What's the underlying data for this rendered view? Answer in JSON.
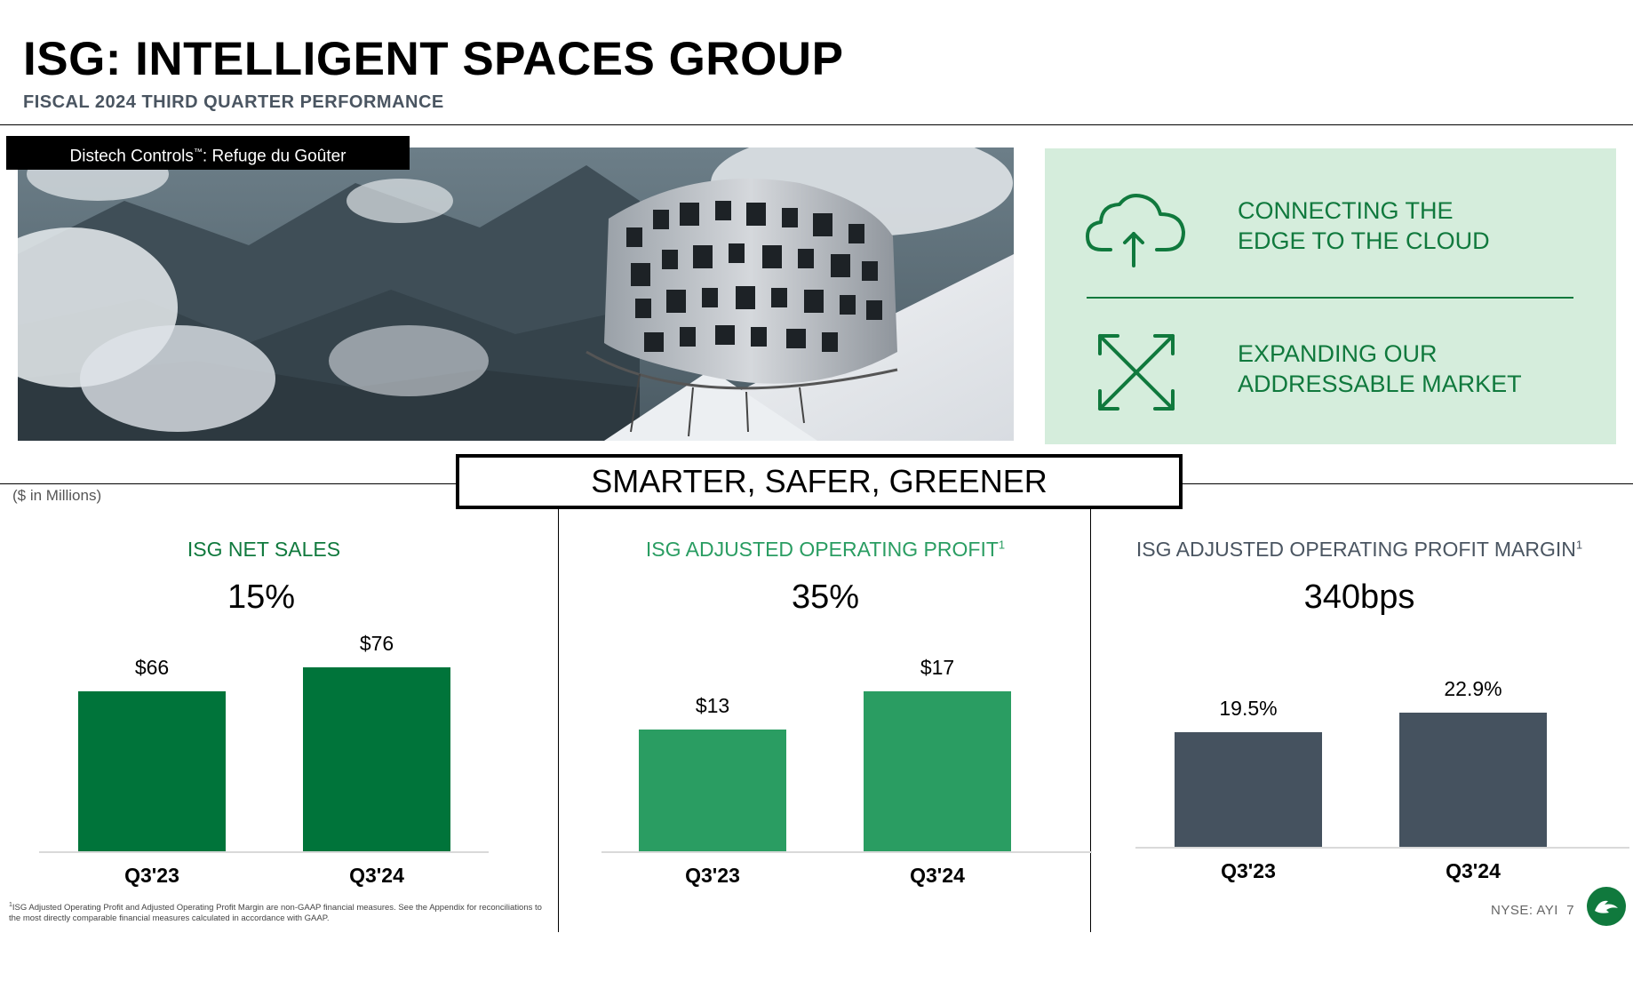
{
  "header": {
    "title": "ISG: INTELLIGENT SPACES GROUP",
    "subtitle": "FISCAL 2024 THIRD QUARTER PERFORMANCE"
  },
  "photo": {
    "caption_main": "Distech Controls",
    "caption_tm": "™",
    "caption_rest": ": Refuge du Goûter"
  },
  "panel": {
    "items": [
      {
        "line1": "CONNECTING THE",
        "line2": "EDGE TO THE CLOUD",
        "icon": "cloud-upload-icon"
      },
      {
        "line1": "EXPANDING OUR",
        "line2": "ADDRESSABLE MARKET",
        "icon": "expand-arrows-icon"
      }
    ],
    "color": "#10793d",
    "background": "#d5eddc"
  },
  "tagline": "SMARTER, SAFER, GREENER",
  "units_note": "($ in Millions)",
  "chart_data": [
    {
      "type": "bar",
      "title": "ISG NET SALES",
      "title_sup": "",
      "growth": "15%",
      "categories": [
        "Q3'23",
        "Q3'24"
      ],
      "values": [
        66,
        76
      ],
      "value_labels": [
        "$66",
        "$76"
      ],
      "color": "#00743a",
      "title_color": "#10793d"
    },
    {
      "type": "bar",
      "title": "ISG ADJUSTED OPERATING PROFIT",
      "title_sup": "1",
      "growth": "35%",
      "categories": [
        "Q3'23",
        "Q3'24"
      ],
      "values": [
        13,
        17
      ],
      "value_labels": [
        "$13",
        "$17"
      ],
      "color": "#2a9d62",
      "title_color": "#2a9d62"
    },
    {
      "type": "bar",
      "title": "ISG ADJUSTED OPERATING PROFIT MARGIN",
      "title_sup": "1",
      "growth": "340bps",
      "categories": [
        "Q3'23",
        "Q3'24"
      ],
      "values": [
        19.5,
        22.9
      ],
      "value_labels": [
        "19.5%",
        "22.9%"
      ],
      "color": "#45525f",
      "title_color": "#4a5561"
    }
  ],
  "footnote": {
    "sup": "1",
    "text": "ISG Adjusted Operating Profit and Adjusted Operating Profit Margin are non-GAAP financial measures. See the Appendix for reconciliations to the most directly comparable financial measures calculated in accordance with GAAP."
  },
  "footer": {
    "ticker": "NYSE: AYI",
    "page": "7",
    "logo_color": "#10793d"
  }
}
